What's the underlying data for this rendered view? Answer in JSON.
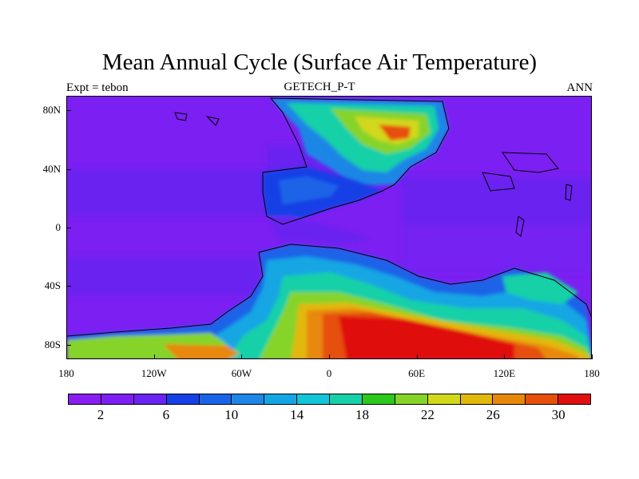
{
  "header": {
    "title": "Mean Annual Cycle (Surface Air Temperature)",
    "left": "Expt = tebon",
    "center": "GETECH_P-T",
    "right": "ANN"
  },
  "map": {
    "lat_labels": [
      "80N",
      "40N",
      "0",
      "40S",
      "80S"
    ],
    "lat_values": [
      80,
      40,
      0,
      -40,
      -80
    ],
    "lon_labels": [
      "180",
      "120W",
      "60W",
      "0",
      "60E",
      "120E",
      "180"
    ],
    "lon_values": [
      -180,
      -120,
      -60,
      0,
      60,
      120,
      180
    ]
  },
  "colorbar": {
    "colors": [
      "#8a1ef0",
      "#7c1ff2",
      "#6a23f0",
      "#1640e6",
      "#1a64e8",
      "#1e86e6",
      "#14a6e4",
      "#10c6d8",
      "#18d0a8",
      "#2cc81c",
      "#86d42a",
      "#d2d81a",
      "#e2b80a",
      "#e8880a",
      "#e6500a",
      "#e01010"
    ],
    "labels": [
      "2",
      "6",
      "10",
      "14",
      "18",
      "22",
      "26",
      "30"
    ]
  }
}
